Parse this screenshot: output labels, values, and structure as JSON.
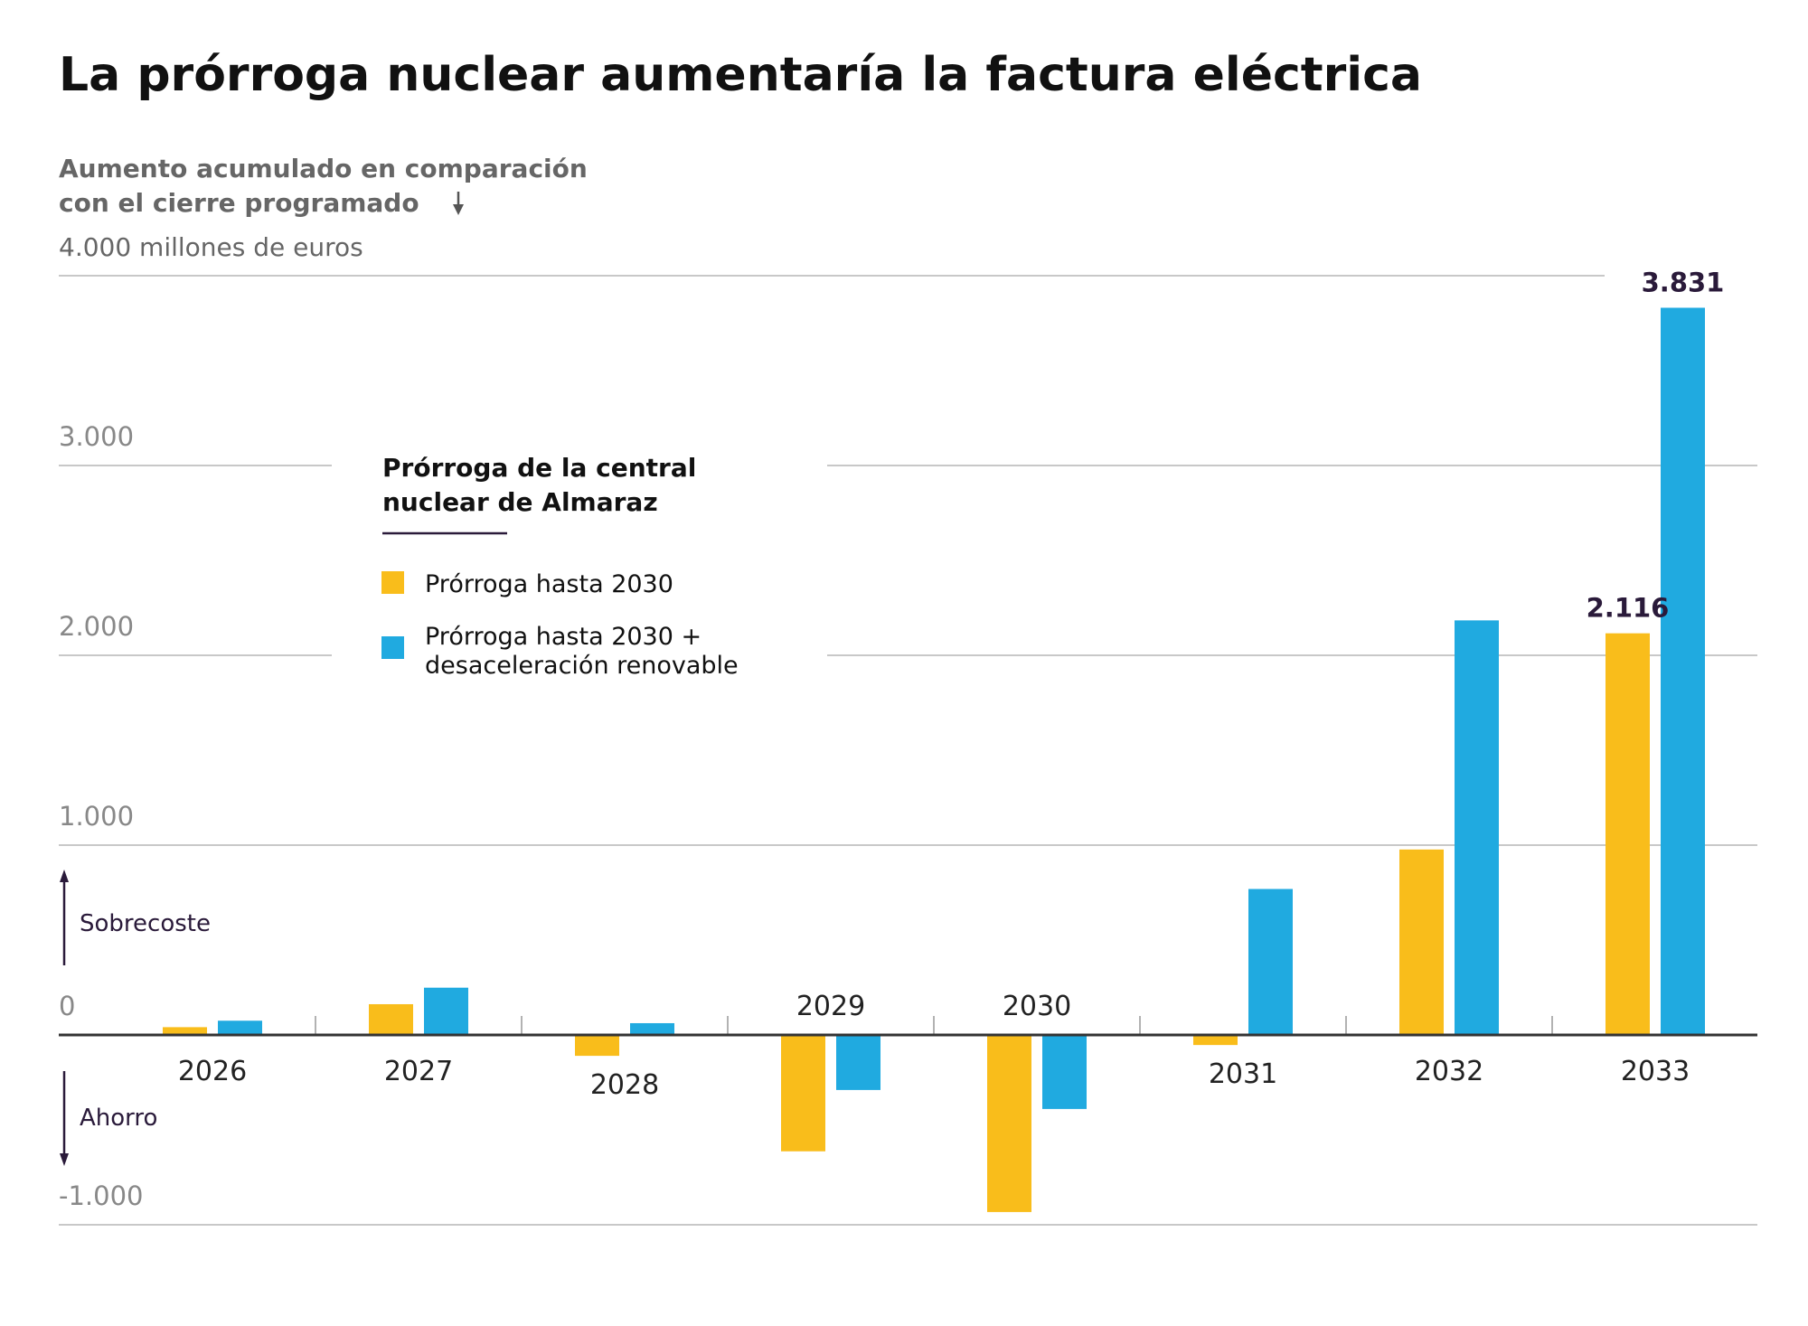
{
  "chart_data": {
    "type": "bar",
    "title": "La prórroga nuclear aumentaría la factura eléctrica",
    "subtitle_lines": [
      "Aumento acumulado en comparación",
      "con el cierre programado"
    ],
    "ylabel": "millones de euros",
    "top_tick_label": "4.000 millones de euros",
    "ylim": [
      -1000,
      4000
    ],
    "yticks": [
      -1000,
      0,
      1000,
      2000,
      3000,
      4000
    ],
    "ytick_labels": [
      "-1.000",
      "0",
      "1.000",
      "2.000",
      "3.000",
      "4.000 millones de euros"
    ],
    "grid": true,
    "categories": [
      "2026",
      "2027",
      "2028",
      "2029",
      "2030",
      "2031",
      "2032",
      "2033"
    ],
    "legend": {
      "title_lines": [
        "Prórroga de la central",
        "nuclear de Almaraz"
      ],
      "placement": "center-left"
    },
    "series": [
      {
        "name": "Prórroga hasta 2030",
        "color": "#f9bd1b",
        "values": [
          41,
          162,
          -110,
          -613,
          -933,
          -53,
          977,
          2116
        ]
      },
      {
        "name": "Prórroga hasta 2030 + desaceleración renovable",
        "name_lines": [
          "Prórroga hasta 2030 +",
          "desaceleración renovable"
        ],
        "color": "#20aae0",
        "values": [
          75,
          249,
          62,
          -290,
          -390,
          769,
          2184,
          3831
        ]
      }
    ],
    "data_labels": [
      {
        "series": 0,
        "category": "2033",
        "text": "2.116"
      },
      {
        "series": 1,
        "category": "2033",
        "text": "3.831"
      }
    ],
    "annotations": {
      "up": "Sobrecoste",
      "down": "Ahorro"
    }
  }
}
